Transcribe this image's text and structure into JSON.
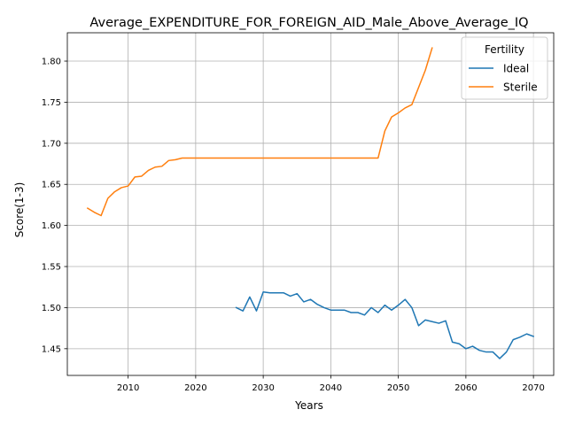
{
  "chart_data": {
    "type": "line",
    "title": "Average_EXPENDITURE_FOR_FOREIGN_AID_Male_Above_Average_IQ",
    "xlabel": "Years",
    "ylabel": "Score(1-3)",
    "xlim": [
      2001,
      2073
    ],
    "ylim": [
      1.4175,
      1.8345
    ],
    "xticks": [
      2010,
      2020,
      2030,
      2040,
      2050,
      2060,
      2070
    ],
    "yticks": [
      1.45,
      1.5,
      1.55,
      1.6,
      1.65,
      1.7,
      1.75,
      1.8
    ],
    "xtick_labels": [
      "2010",
      "2020",
      "2030",
      "2040",
      "2050",
      "2060",
      "2070"
    ],
    "ytick_labels": [
      "1.45",
      "1.50",
      "1.55",
      "1.60",
      "1.65",
      "1.70",
      "1.75",
      "1.80"
    ],
    "grid": true,
    "legend": {
      "title": "Fertility",
      "position": "top-right"
    },
    "series": [
      {
        "name": "Ideal",
        "color": "#1f77b4",
        "x": [
          2026,
          2027,
          2028,
          2029,
          2030,
          2031,
          2032,
          2033,
          2034,
          2035,
          2036,
          2037,
          2038,
          2039,
          2040,
          2041,
          2042,
          2043,
          2044,
          2045,
          2046,
          2047,
          2048,
          2049,
          2050,
          2051,
          2052,
          2053,
          2054,
          2055,
          2056,
          2057,
          2058,
          2059,
          2060,
          2061,
          2062,
          2063,
          2064,
          2065,
          2066,
          2067,
          2068,
          2069,
          2070
        ],
        "y": [
          1.5,
          1.496,
          1.513,
          1.496,
          1.519,
          1.518,
          1.518,
          1.518,
          1.514,
          1.517,
          1.507,
          1.51,
          1.504,
          1.5,
          1.497,
          1.497,
          1.497,
          1.494,
          1.494,
          1.491,
          1.5,
          1.494,
          1.503,
          1.497,
          1.503,
          1.51,
          1.5,
          1.478,
          1.485,
          1.483,
          1.481,
          1.484,
          1.458,
          1.456,
          1.45,
          1.453,
          1.448,
          1.446,
          1.446,
          1.438,
          1.446,
          1.461,
          1.464,
          1.468,
          1.465
        ]
      },
      {
        "name": "Sterile",
        "color": "#ff7f0e",
        "x": [
          2004,
          2005,
          2006,
          2007,
          2008,
          2009,
          2010,
          2011,
          2012,
          2013,
          2014,
          2015,
          2016,
          2017,
          2018,
          2019,
          2020,
          2021,
          2022,
          2023,
          2024,
          2025,
          2026,
          2027,
          2028,
          2029,
          2030,
          2031,
          2032,
          2033,
          2034,
          2035,
          2036,
          2037,
          2038,
          2039,
          2040,
          2041,
          2042,
          2043,
          2044,
          2045,
          2046,
          2047,
          2048,
          2049,
          2050,
          2051,
          2052,
          2053,
          2054,
          2055
        ],
        "y": [
          1.621,
          1.616,
          1.612,
          1.633,
          1.641,
          1.646,
          1.648,
          1.659,
          1.66,
          1.667,
          1.671,
          1.672,
          1.679,
          1.68,
          1.682,
          1.682,
          1.682,
          1.682,
          1.682,
          1.682,
          1.682,
          1.682,
          1.682,
          1.682,
          1.682,
          1.682,
          1.682,
          1.682,
          1.682,
          1.682,
          1.682,
          1.682,
          1.682,
          1.682,
          1.682,
          1.682,
          1.682,
          1.682,
          1.682,
          1.682,
          1.682,
          1.682,
          1.682,
          1.682,
          1.715,
          1.732,
          1.737,
          1.743,
          1.747,
          1.768,
          1.789,
          1.816
        ]
      }
    ]
  }
}
